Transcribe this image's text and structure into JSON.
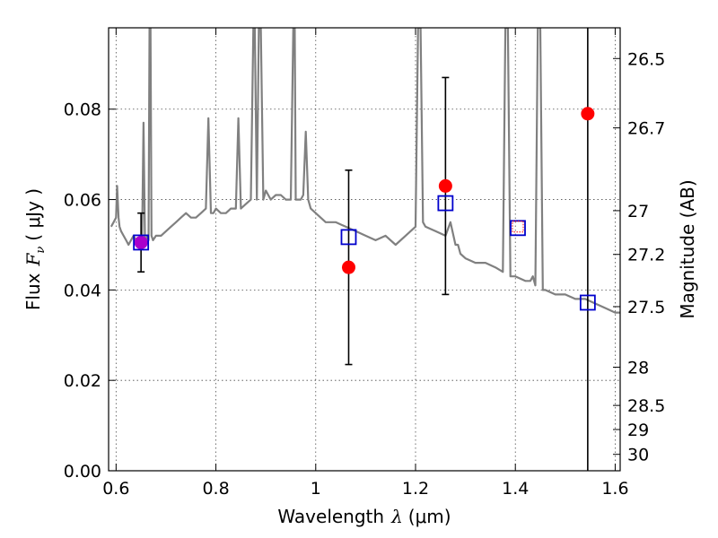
{
  "chart_data": {
    "type": "scatter",
    "xlabel": "Wavelength",
    "xlabel_symbol": "λ",
    "xlabel_unit": "(μm)",
    "ylabel": "Flux",
    "ylabel_symbol": "F",
    "ylabel_symbol_sub": "ν",
    "ylabel_unit": "( μJy )",
    "y2label": "Magnitude (AB)",
    "xlim": [
      0.585,
      1.61
    ],
    "ylim": [
      0.0,
      0.098
    ],
    "grid": true,
    "x_ticks": [
      0.6,
      0.8,
      1.0,
      1.2,
      1.4,
      1.6
    ],
    "x_tick_labels": [
      "0.6",
      "0.8",
      "1",
      "1.2",
      "1.4",
      "1.6"
    ],
    "y_ticks": [
      0.0,
      0.02,
      0.04,
      0.06,
      0.08
    ],
    "y_tick_labels": [
      "0.00",
      "0.02",
      "0.04",
      "0.06",
      "0.08"
    ],
    "y2_ticks": [
      {
        "mag": 26.5,
        "label": "26.5"
      },
      {
        "mag": 26.7,
        "label": "26.7"
      },
      {
        "mag": 27.0,
        "label": "27"
      },
      {
        "mag": 27.2,
        "label": "27.2"
      },
      {
        "mag": 27.5,
        "label": "27.5"
      },
      {
        "mag": 28.0,
        "label": "28"
      },
      {
        "mag": 28.5,
        "label": "28.5"
      },
      {
        "mag": 29.0,
        "label": "29"
      },
      {
        "mag": 30.0,
        "label": "30"
      }
    ],
    "colors": {
      "spectrum": "#808080",
      "observed": "#ff0000",
      "model": "#0000cc",
      "errorbar": "#000000",
      "overlap": "#aa00cc"
    },
    "model_spectrum": {
      "x": [
        0.59,
        0.595,
        0.6,
        0.602,
        0.605,
        0.607,
        0.61,
        0.615,
        0.62,
        0.625,
        0.63,
        0.635,
        0.64,
        0.645,
        0.648,
        0.652,
        0.655,
        0.658,
        0.66,
        0.663,
        0.665,
        0.667,
        0.669,
        0.671,
        0.674,
        0.68,
        0.69,
        0.7,
        0.71,
        0.72,
        0.73,
        0.74,
        0.75,
        0.76,
        0.77,
        0.78,
        0.785,
        0.79,
        0.795,
        0.8,
        0.81,
        0.82,
        0.83,
        0.84,
        0.845,
        0.85,
        0.86,
        0.87,
        0.875,
        0.878,
        0.882,
        0.886,
        0.89,
        0.895,
        0.9,
        0.91,
        0.92,
        0.93,
        0.94,
        0.95,
        0.955,
        0.958,
        0.96,
        0.965,
        0.97,
        0.975,
        0.98,
        0.985,
        0.99,
        1.0,
        1.02,
        1.04,
        1.06,
        1.08,
        1.1,
        1.12,
        1.14,
        1.16,
        1.18,
        1.2,
        1.205,
        1.21,
        1.215,
        1.22,
        1.24,
        1.26,
        1.27,
        1.28,
        1.285,
        1.29,
        1.3,
        1.32,
        1.34,
        1.36,
        1.375,
        1.38,
        1.385,
        1.39,
        1.4,
        1.42,
        1.43,
        1.435,
        1.44,
        1.445,
        1.45,
        1.455,
        1.46,
        1.48,
        1.5,
        1.52,
        1.54,
        1.56,
        1.58,
        1.6,
        1.61
      ],
      "y": [
        0.054,
        0.055,
        0.056,
        0.063,
        0.056,
        0.054,
        0.053,
        0.052,
        0.051,
        0.05,
        0.051,
        0.052,
        0.051,
        0.05,
        0.05,
        0.051,
        0.077,
        0.05,
        0.051,
        0.052,
        0.051,
        0.098,
        0.098,
        0.052,
        0.051,
        0.052,
        0.052,
        0.053,
        0.054,
        0.055,
        0.056,
        0.057,
        0.056,
        0.056,
        0.057,
        0.058,
        0.078,
        0.057,
        0.057,
        0.058,
        0.057,
        0.057,
        0.058,
        0.058,
        0.078,
        0.058,
        0.059,
        0.06,
        0.098,
        0.098,
        0.06,
        0.098,
        0.098,
        0.06,
        0.062,
        0.06,
        0.061,
        0.061,
        0.06,
        0.06,
        0.098,
        0.098,
        0.06,
        0.06,
        0.06,
        0.061,
        0.075,
        0.06,
        0.058,
        0.057,
        0.055,
        0.055,
        0.054,
        0.053,
        0.052,
        0.051,
        0.052,
        0.05,
        0.052,
        0.054,
        0.098,
        0.098,
        0.055,
        0.054,
        0.053,
        0.052,
        0.055,
        0.05,
        0.05,
        0.048,
        0.047,
        0.046,
        0.046,
        0.045,
        0.044,
        0.098,
        0.098,
        0.043,
        0.043,
        0.042,
        0.042,
        0.043,
        0.041,
        0.098,
        0.098,
        0.04,
        0.04,
        0.039,
        0.039,
        0.038,
        0.038,
        0.037,
        0.036,
        0.035,
        0.035
      ]
    },
    "observed_points": [
      {
        "x": 0.65,
        "y": 0.0505,
        "yerr_low": 0.044,
        "yerr_high": 0.057
      },
      {
        "x": 1.066,
        "y": 0.045,
        "yerr_low": 0.0235,
        "yerr_high": 0.0665
      },
      {
        "x": 1.26,
        "y": 0.063,
        "yerr_low": 0.039,
        "yerr_high": 0.087
      },
      {
        "x": 1.405,
        "y": 0.054,
        "yerr_low": null,
        "yerr_high": null
      },
      {
        "x": 1.545,
        "y": 0.079,
        "yerr_low": 0.0,
        "yerr_high": 0.098
      }
    ],
    "model_points": [
      {
        "x": 0.65,
        "y": 0.0505
      },
      {
        "x": 1.066,
        "y": 0.0517
      },
      {
        "x": 1.26,
        "y": 0.0592
      },
      {
        "x": 1.405,
        "y": 0.0537
      },
      {
        "x": 1.545,
        "y": 0.0372
      }
    ]
  }
}
